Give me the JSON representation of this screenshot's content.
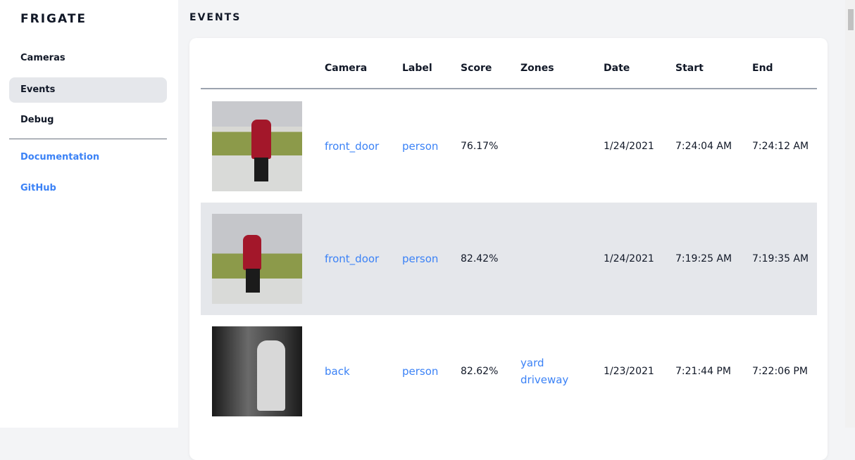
{
  "sidebar": {
    "brand": "FRIGATE",
    "items": [
      {
        "label": "Cameras"
      },
      {
        "label": "Events",
        "active": true
      },
      {
        "label": "Debug"
      }
    ],
    "links": [
      {
        "label": "Documentation"
      },
      {
        "label": "GitHub"
      }
    ]
  },
  "main": {
    "title": "EVENTS"
  },
  "table": {
    "headers": [
      "Camera",
      "Label",
      "Score",
      "Zones",
      "Date",
      "Start",
      "End"
    ],
    "rows": [
      {
        "camera": "front_door",
        "label": "person",
        "score": "76.17%",
        "zones": [
          "",
          ""
        ],
        "date": "1/24/2021",
        "start": "7:24:04 AM",
        "end": "7:24:12 AM"
      },
      {
        "camera": "front_door",
        "label": "person",
        "score": "82.42%",
        "zones": [
          "",
          ""
        ],
        "date": "1/24/2021",
        "start": "7:19:25 AM",
        "end": "7:19:35 AM"
      },
      {
        "camera": "back",
        "label": "person",
        "score": "82.62%",
        "zones": [
          "yard",
          "driveway"
        ],
        "date": "1/23/2021",
        "start": "7:21:44 PM",
        "end": "7:22:06 PM"
      }
    ]
  },
  "colors": {
    "accent": "#3b82f6",
    "active_bg": "#e5e7eb",
    "page_bg": "#f3f4f6"
  }
}
